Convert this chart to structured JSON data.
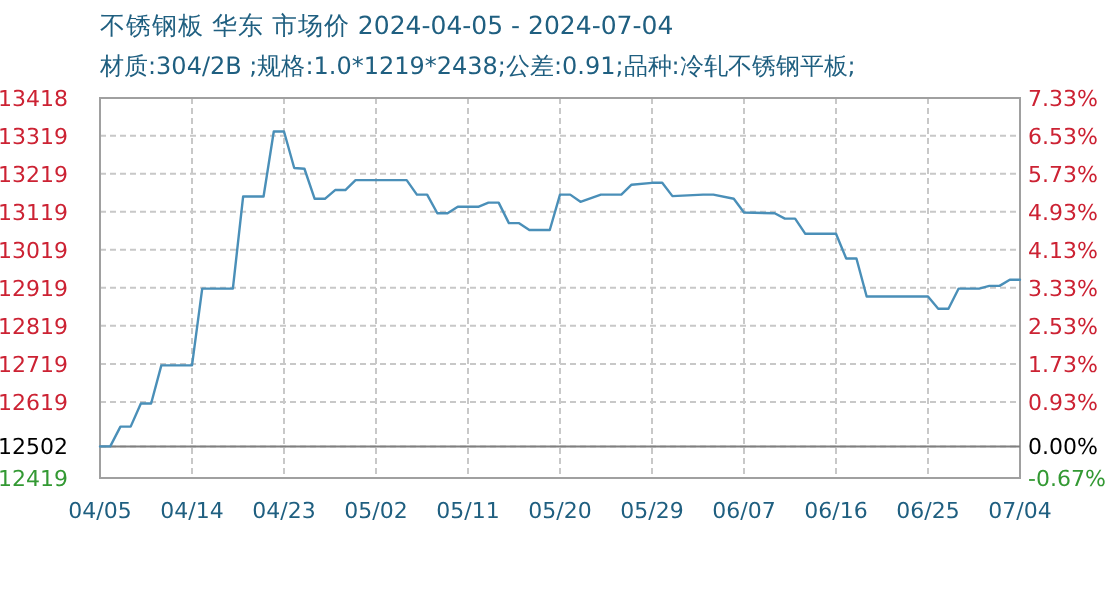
{
  "chart_data": {
    "type": "line",
    "title": "不锈钢板 华东 市场价 2024-04-05 - 2024-07-04",
    "subtitle": "材质:304/2B ;规格:1.0*1219*2438;公差:0.91;品种:冷轧不锈钢平板;",
    "color": "#4a8fb8",
    "grid": true,
    "x": [
      "--04-05",
      "--04-06",
      "--04-07",
      "--04-08",
      "--04-09",
      "--04-10",
      "--04-11",
      "--04-14",
      "--04-15",
      "--04-18",
      "--04-19",
      "--04-21",
      "--04-22",
      "--04-23",
      "--04-24",
      "--04-25",
      "--04-26",
      "--04-27",
      "--04-28",
      "--04-29",
      "--04-30",
      "--05-05",
      "--05-06",
      "--05-07",
      "--05-08",
      "--05-09",
      "--05-10",
      "--05-12",
      "--05-13",
      "--05-14",
      "--05-15",
      "--05-16",
      "--05-17",
      "--05-19",
      "--05-20",
      "--05-21",
      "--05-22",
      "--05-24",
      "--05-26",
      "--05-27",
      "--05-29",
      "--05-30",
      "--05-31",
      "--06-03",
      "--06-04",
      "--06-06",
      "--06-07",
      "--06-10",
      "--06-11",
      "--06-12",
      "--06-13",
      "--06-16",
      "--06-17",
      "--06-18",
      "--06-19",
      "--06-25",
      "--06-26",
      "--06-27",
      "--06-28",
      "--06-30",
      "--07-01",
      "--07-02",
      "--07-03",
      "--07-04"
    ],
    "values": [
      12502,
      12502,
      12554,
      12554,
      12615,
      12615,
      12715,
      12715,
      12917,
      12917,
      13159,
      13159,
      13330,
      13330,
      13234,
      13232,
      13153,
      13153,
      13176,
      13176,
      13202,
      13202,
      13164,
      13164,
      13115,
      13115,
      13132,
      13132,
      13143,
      13143,
      13089,
      13089,
      13071,
      13071,
      13164,
      13164,
      13145,
      13164,
      13164,
      13190,
      13195,
      13195,
      13160,
      13164,
      13164,
      13153,
      13117,
      13115,
      13101,
      13101,
      13061,
      13061,
      12996,
      12996,
      12896,
      12896,
      12864,
      12864,
      12917,
      12917,
      12924,
      12924,
      12940,
      12940
    ],
    "xlim": [
      "--04-05",
      "--07-04"
    ],
    "xticks": [
      {
        "value": "--04-05",
        "label": "04/05"
      },
      {
        "value": "--04-14",
        "label": "04/14"
      },
      {
        "value": "--04-23",
        "label": "04/23"
      },
      {
        "value": "--05-02",
        "label": "05/02"
      },
      {
        "value": "--05-11",
        "label": "05/11"
      },
      {
        "value": "--05-20",
        "label": "05/20"
      },
      {
        "value": "--05-29",
        "label": "05/29"
      },
      {
        "value": "--06-07",
        "label": "06/07"
      },
      {
        "value": "--06-16",
        "label": "06/16"
      },
      {
        "value": "--06-25",
        "label": "06/25"
      },
      {
        "value": "--07-04",
        "label": "07/04"
      }
    ],
    "ylim": [
      12419,
      13418
    ],
    "yticks": [
      12419,
      12502,
      12619,
      12719,
      12819,
      12919,
      13019,
      13119,
      13219,
      13319,
      13418
    ],
    "y2lim": [
      -0.67,
      7.33
    ],
    "y2ticks": [
      {
        "value": -0.67,
        "label": "-0.67%"
      },
      {
        "value": 0,
        "label": "0.00%"
      },
      {
        "value": 0.93,
        "label": "0.93%"
      },
      {
        "value": 1.73,
        "label": "1.73%"
      },
      {
        "value": 2.53,
        "label": "2.53%"
      },
      {
        "value": 3.33,
        "label": "3.33%"
      },
      {
        "value": 4.13,
        "label": "4.13%"
      },
      {
        "value": 4.93,
        "label": "4.93%"
      },
      {
        "value": 5.73,
        "label": "5.73%"
      },
      {
        "value": 6.53,
        "label": "6.53%"
      },
      {
        "value": 7.33,
        "label": "7.33%"
      }
    ],
    "ref_lines": [
      {
        "axis": "y",
        "value": 12502,
        "color": "#808080"
      }
    ]
  }
}
